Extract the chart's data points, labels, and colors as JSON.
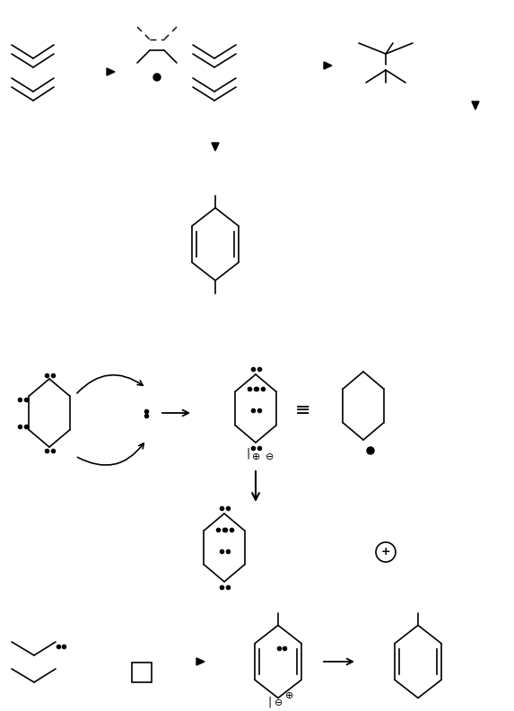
{
  "bg_color": "#ffffff",
  "fig_width": 5.73,
  "fig_height": 7.92,
  "dpi": 100,
  "lw": 1.2
}
